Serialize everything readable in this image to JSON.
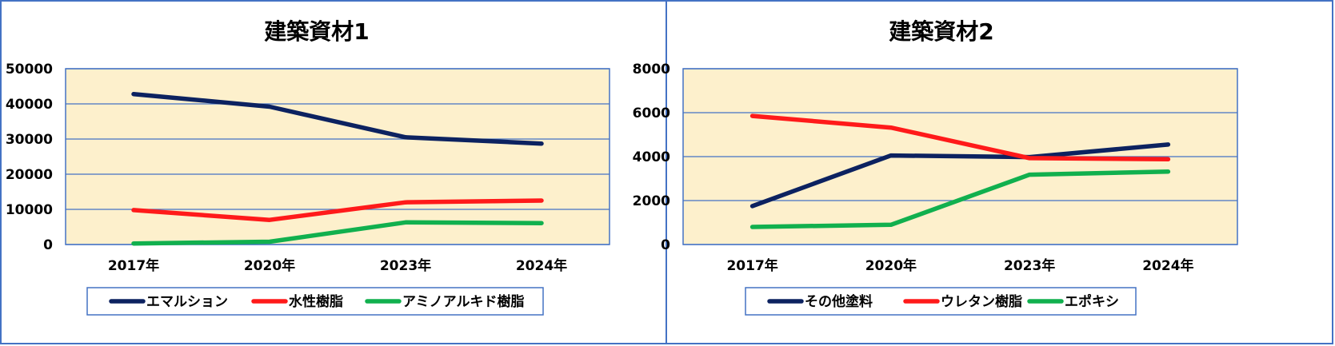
{
  "chart_data": [
    {
      "type": "line",
      "title": "建築資材1",
      "categories": [
        "2017年",
        "2020年",
        "2023年",
        "2024年"
      ],
      "ylim": [
        0,
        50000
      ],
      "yticks": [
        0,
        10000,
        20000,
        30000,
        40000,
        50000
      ],
      "grid": true,
      "legend_position": "bottom",
      "series": [
        {
          "name": "エマルション",
          "color": "#0c2260",
          "values": [
            42800,
            39200,
            30500,
            28700
          ]
        },
        {
          "name": "水性樹脂",
          "color": "#ff1a1a",
          "values": [
            9800,
            7000,
            12000,
            12500
          ]
        },
        {
          "name": "アミノアルキド樹脂",
          "color": "#11b04e",
          "values": [
            300,
            800,
            6300,
            6100
          ]
        }
      ]
    },
    {
      "type": "line",
      "title": "建築資材2",
      "categories": [
        "2017年",
        "2020年",
        "2023年",
        "2024年"
      ],
      "ylim": [
        0,
        8000
      ],
      "yticks": [
        0,
        2000,
        4000,
        6000,
        8000
      ],
      "grid": true,
      "legend_position": "bottom",
      "series": [
        {
          "name": "その他塗料",
          "color": "#0c2260",
          "values": [
            1750,
            4050,
            3980,
            4550
          ]
        },
        {
          "name": "ウレタン樹脂",
          "color": "#ff1a1a",
          "values": [
            5850,
            5320,
            3930,
            3880
          ]
        },
        {
          "name": "エポキシ",
          "color": "#11b04e",
          "values": [
            800,
            900,
            3180,
            3320
          ]
        }
      ]
    }
  ],
  "colors": {
    "plot_background": "#fdf0cc",
    "grid": "#4472c4",
    "frame": "#4472c4"
  }
}
